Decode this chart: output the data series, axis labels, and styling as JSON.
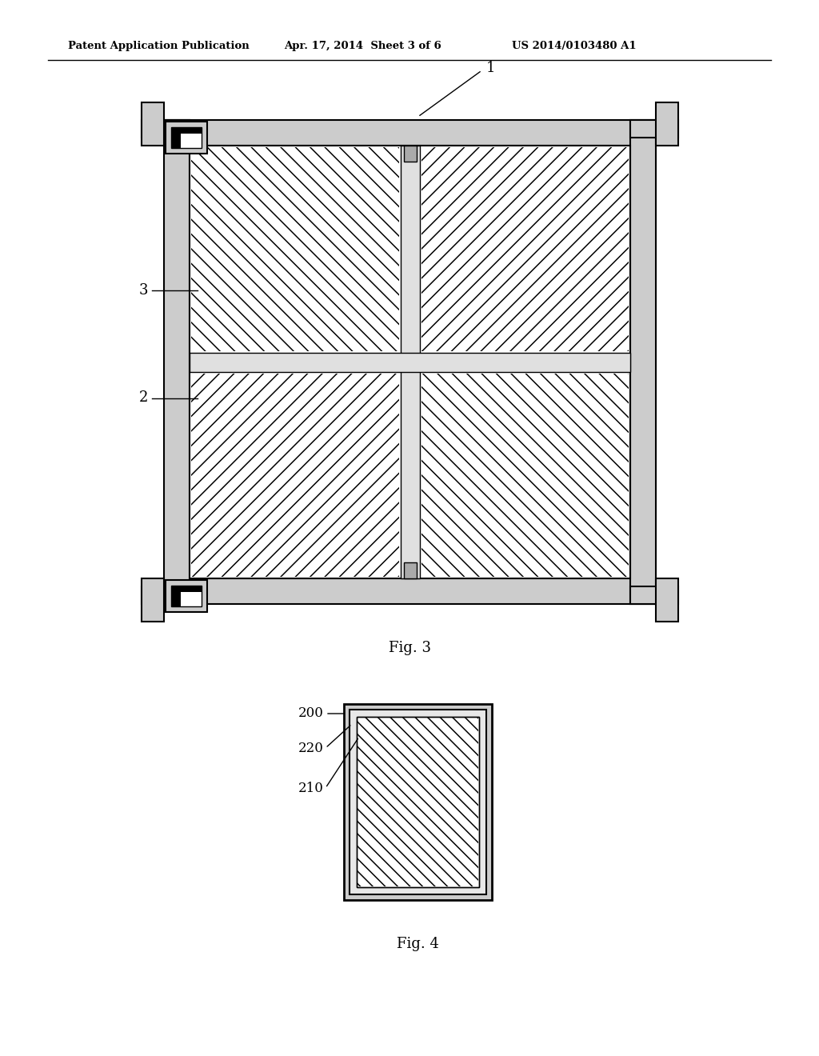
{
  "background_color": "#ffffff",
  "header_text": "Patent Application Publication",
  "header_date": "Apr. 17, 2014  Sheet 3 of 6",
  "header_patent": "US 2014/0103480 A1",
  "fig3_label": "Fig. 3",
  "fig4_label": "Fig. 4",
  "fig3_ref1": "1",
  "fig3_ref2": "2",
  "fig3_ref3": "3",
  "fig4_ref200": "200",
  "fig4_ref220": "220",
  "fig4_ref210": "210",
  "dot_fill": "#cccccc",
  "line_color": "#000000"
}
